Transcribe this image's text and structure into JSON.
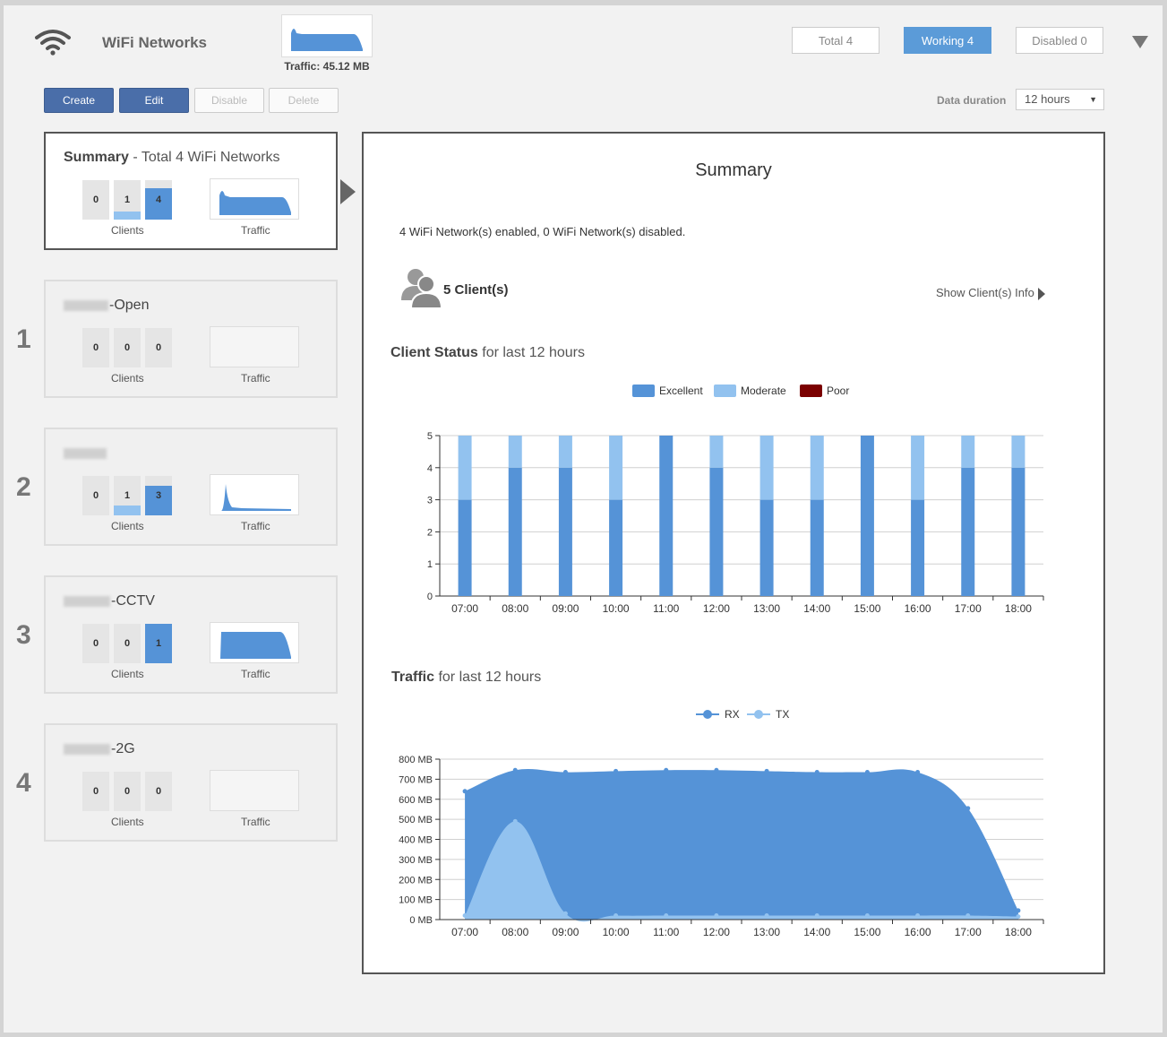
{
  "header": {
    "title": "WiFi Networks",
    "traffic_caption": "Traffic: 45.12 MB",
    "filters": [
      {
        "label": "Total 4",
        "active": false
      },
      {
        "label": "Working 4",
        "active": true
      },
      {
        "label": "Disabled 0",
        "active": false
      }
    ]
  },
  "toolbar": {
    "create": "Create",
    "edit": "Edit",
    "disable": "Disable",
    "delete": "Delete",
    "duration_label": "Data duration",
    "duration_value": "12 hours"
  },
  "cards": {
    "summary": {
      "title_bold": "Summary",
      "title_rest": " - Total 4 WiFi Networks",
      "bars": [
        "0",
        "1",
        "4"
      ],
      "bar_levels": [
        0,
        0.2,
        0.8
      ],
      "clients_label": "Clients",
      "traffic_label": "Traffic"
    },
    "networks": [
      {
        "number": "1",
        "name_suffix": "-Open",
        "bars": [
          "0",
          "0",
          "0"
        ],
        "bar_levels": [
          0,
          0,
          0
        ],
        "clients_label": "Clients",
        "traffic_label": "Traffic"
      },
      {
        "number": "2",
        "name_suffix": "",
        "bars": [
          "0",
          "1",
          "3"
        ],
        "bar_levels": [
          0,
          0.25,
          0.75
        ],
        "clients_label": "Clients",
        "traffic_label": "Traffic"
      },
      {
        "number": "3",
        "name_suffix": "-CCTV",
        "bars": [
          "0",
          "0",
          "1"
        ],
        "bar_levels": [
          0,
          0,
          1
        ],
        "clients_label": "Clients",
        "traffic_label": "Traffic"
      },
      {
        "number": "4",
        "name_suffix": "-2G",
        "bars": [
          "0",
          "0",
          "0"
        ],
        "bar_levels": [
          0,
          0,
          0
        ],
        "clients_label": "Clients",
        "traffic_label": "Traffic"
      }
    ]
  },
  "panel": {
    "title": "Summary",
    "summary_text": "4 WiFi Network(s) enabled, 0 WiFi Network(s) disabled.",
    "clients_count": "5 Client(s)",
    "show_info": "Show Client(s) Info",
    "client_status_bold": "Client Status",
    "client_status_rest": " for last 12 hours",
    "traffic_bold": "Traffic",
    "traffic_rest": " for last 12 hours"
  },
  "colors": {
    "excellent": "#5593d7",
    "moderate": "#92c2ef",
    "poor": "#7b0000",
    "rx": "#5593d7",
    "tx": "#92c2ef"
  },
  "chart_data": [
    {
      "type": "bar",
      "stacked": true,
      "categories": [
        "07:00",
        "08:00",
        "09:00",
        "10:00",
        "11:00",
        "12:00",
        "13:00",
        "14:00",
        "15:00",
        "16:00",
        "17:00",
        "18:00"
      ],
      "series": [
        {
          "name": "Excellent",
          "values": [
            3,
            4,
            4,
            3,
            5,
            4,
            3,
            3,
            5,
            3,
            4,
            4
          ]
        },
        {
          "name": "Moderate",
          "values": [
            2,
            1,
            1,
            2,
            0,
            1,
            2,
            2,
            0,
            2,
            1,
            1
          ]
        },
        {
          "name": "Poor",
          "values": [
            0,
            0,
            0,
            0,
            0,
            0,
            0,
            0,
            0,
            0,
            0,
            0
          ]
        }
      ],
      "ylim": [
        0,
        5
      ],
      "yticks": [
        "0",
        "1",
        "2",
        "3",
        "4",
        "5"
      ],
      "legend": "top-center",
      "grid": true
    },
    {
      "type": "area",
      "categories": [
        "07:00",
        "08:00",
        "09:00",
        "10:00",
        "11:00",
        "12:00",
        "13:00",
        "14:00",
        "15:00",
        "16:00",
        "17:00",
        "18:00"
      ],
      "series": [
        {
          "name": "RX",
          "values": [
            640,
            745,
            735,
            740,
            745,
            745,
            740,
            735,
            735,
            735,
            555,
            45
          ]
        },
        {
          "name": "TX",
          "values": [
            20,
            490,
            30,
            20,
            20,
            20,
            20,
            20,
            20,
            20,
            20,
            15
          ]
        }
      ],
      "ylim": [
        0,
        800
      ],
      "yticks": [
        "0 MB",
        "100 MB",
        "200 MB",
        "300 MB",
        "400 MB",
        "500 MB",
        "600 MB",
        "700 MB",
        "800 MB"
      ],
      "legend": "top-center",
      "grid": true
    }
  ]
}
